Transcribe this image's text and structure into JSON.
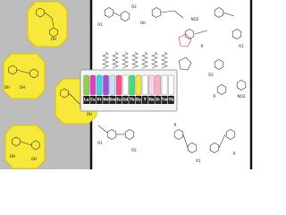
{
  "tubes": [
    {
      "label": "La",
      "color": "#8fd14f"
    },
    {
      "label": "Ce",
      "color": "#e040c0"
    },
    {
      "label": "Pr",
      "color": "#3fd0e0"
    },
    {
      "label": "Nd",
      "color": "#9a4fe0"
    },
    {
      "label": "Sm",
      "color": "#c8e0ff"
    },
    {
      "label": "Eu",
      "color": "#ff4d8d"
    },
    {
      "label": "Gd",
      "color": "#ffffff"
    },
    {
      "label": "Tb",
      "color": "#40e070"
    },
    {
      "label": "Dy",
      "color": "#f5e642"
    },
    {
      "label": "Y",
      "color": "#ffffff"
    },
    {
      "label": "Ho",
      "color": "#ffd0e8"
    },
    {
      "label": "Er",
      "color": "#ffb0c0"
    },
    {
      "label": "Tm",
      "color": "#ffffff"
    },
    {
      "label": "Yb",
      "color": "#ffffff"
    }
  ],
  "structure_labels": [
    "OH",
    "OH",
    "OH",
    "OH",
    "OH",
    "OH",
    "R1",
    "R2",
    "OH",
    "NO2",
    "R",
    "R1",
    "R2",
    "R",
    "NO2",
    "R1",
    "R2",
    "R",
    "R1",
    "R"
  ]
}
